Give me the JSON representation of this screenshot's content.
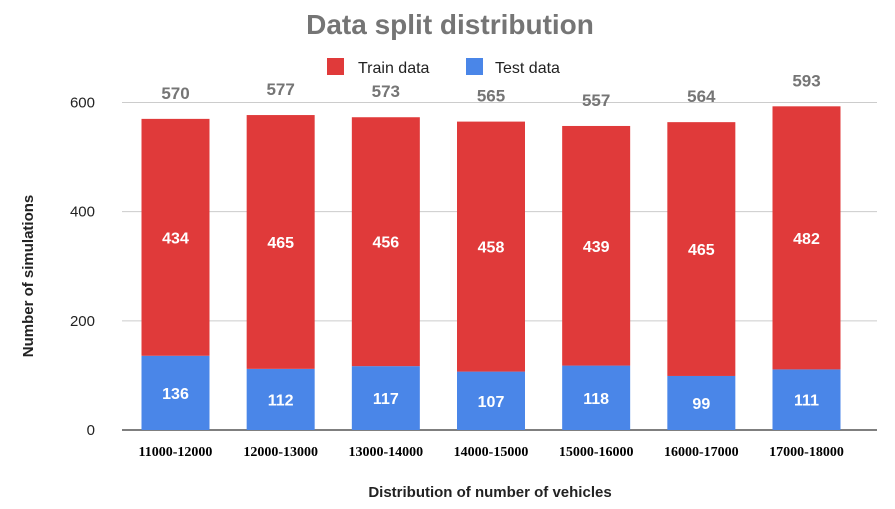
{
  "chart_data": {
    "type": "bar",
    "stacked": true,
    "title": "Data split distribution",
    "xlabel": "Distribution of number of vehicles",
    "ylabel": "Number of simulations",
    "ylim": [
      0,
      600
    ],
    "yticks": [
      0,
      200,
      400,
      600
    ],
    "grid": true,
    "legend_position": "top",
    "categories": [
      "11000-12000",
      "12000-13000",
      "13000-14000",
      "14000-15000",
      "15000-16000",
      "16000-17000",
      "17000-18000"
    ],
    "series": [
      {
        "name": "Test data",
        "color": "#4a86e8",
        "values": [
          136,
          112,
          117,
          107,
          118,
          99,
          111
        ]
      },
      {
        "name": "Train data",
        "color": "#e03a3a",
        "values": [
          434,
          465,
          456,
          458,
          439,
          465,
          482
        ]
      }
    ],
    "totals": [
      570,
      577,
      573,
      565,
      557,
      564,
      593
    ]
  }
}
